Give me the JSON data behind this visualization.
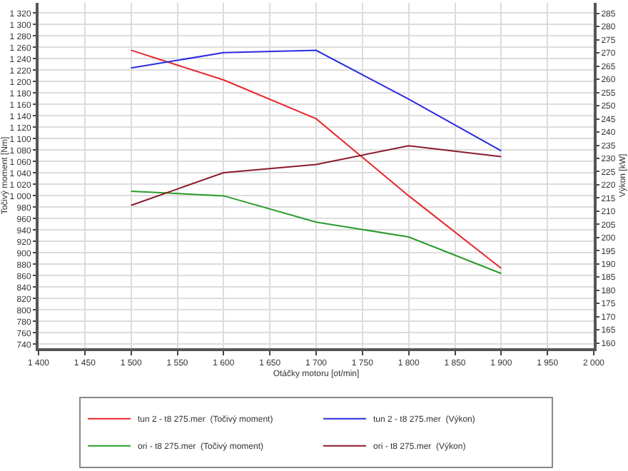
{
  "chart_data": {
    "type": "line",
    "xlabel": "Otáčky motoru [ot/min]",
    "ylabel": "Točivý moment [Nm]",
    "y2label": "Výkon [kW]",
    "x": [
      1500,
      1600,
      1700,
      1800,
      1900
    ],
    "series": [
      {
        "name": "tun 2 - t8 275.mer  (Točivý moment)",
        "color": "#e8262b",
        "values": [
          1255,
          1203,
          1135,
          1000,
          873
        ]
      },
      {
        "name": "tun 2 - t8 275.mer  (Výkon)",
        "color": "#2a2ae0",
        "axis": "y2",
        "values": [
          264.3,
          270.1,
          271,
          252.5,
          232.9
        ]
      },
      {
        "name": "ori - t8 275.mer  (Točivý moment)",
        "color": "#2a9a2a",
        "values": [
          1008,
          1000,
          954,
          928,
          864
        ]
      },
      {
        "name": "ori - t8 275.mer  (Výkon)",
        "color": "#8b1a2a",
        "axis": "y2",
        "values": [
          212.2,
          224.6,
          227.7,
          234.8,
          230.7
        ]
      }
    ],
    "xlim": [
      1400,
      2000
    ],
    "xticks": [
      {
        "value": 1400,
        "label": "1 400"
      },
      {
        "value": 1450,
        "label": "1 450"
      },
      {
        "value": 1500,
        "label": "1 500"
      },
      {
        "value": 1550,
        "label": "1 550"
      },
      {
        "value": 1600,
        "label": "1 600"
      },
      {
        "value": 1650,
        "label": "1 650"
      },
      {
        "value": 1700,
        "label": "1 700"
      },
      {
        "value": 1750,
        "label": "1 750"
      },
      {
        "value": 1800,
        "label": "1 800"
      },
      {
        "value": 1850,
        "label": "1 850"
      },
      {
        "value": 1900,
        "label": "1 900"
      },
      {
        "value": 1950,
        "label": "1 950"
      },
      {
        "value": 2000,
        "label": "2 000"
      }
    ],
    "ylim": [
      733,
      1338
    ],
    "yticks": [
      740,
      760,
      780,
      800,
      820,
      840,
      860,
      880,
      900,
      920,
      940,
      960,
      980,
      {
        "value": 1000,
        "label": "1 000"
      },
      {
        "value": 1020,
        "label": "1 020"
      },
      {
        "value": 1040,
        "label": "1 040"
      },
      {
        "value": 1060,
        "label": "1 060"
      },
      {
        "value": 1080,
        "label": "1 080"
      },
      {
        "value": 1100,
        "label": "1 100"
      },
      {
        "value": 1120,
        "label": "1 120"
      },
      {
        "value": 1140,
        "label": "1 140"
      },
      {
        "value": 1160,
        "label": "1 160"
      },
      {
        "value": 1180,
        "label": "1 180"
      },
      {
        "value": 1200,
        "label": "1 200"
      },
      {
        "value": 1220,
        "label": "1 220"
      },
      {
        "value": 1240,
        "label": "1 240"
      },
      {
        "value": 1260,
        "label": "1 260"
      },
      {
        "value": 1280,
        "label": "1 280"
      },
      {
        "value": 1300,
        "label": "1 300"
      },
      {
        "value": 1320,
        "label": "1 320"
      }
    ],
    "y2lim": [
      158,
      289
    ],
    "y2ticks": [
      160,
      165,
      170,
      175,
      180,
      185,
      190,
      195,
      200,
      205,
      210,
      215,
      220,
      225,
      230,
      235,
      240,
      245,
      250,
      255,
      260,
      265,
      270,
      275,
      280,
      285
    ],
    "grid": true,
    "legend": "bottom",
    "marker": "none",
    "line_style": "solid"
  }
}
